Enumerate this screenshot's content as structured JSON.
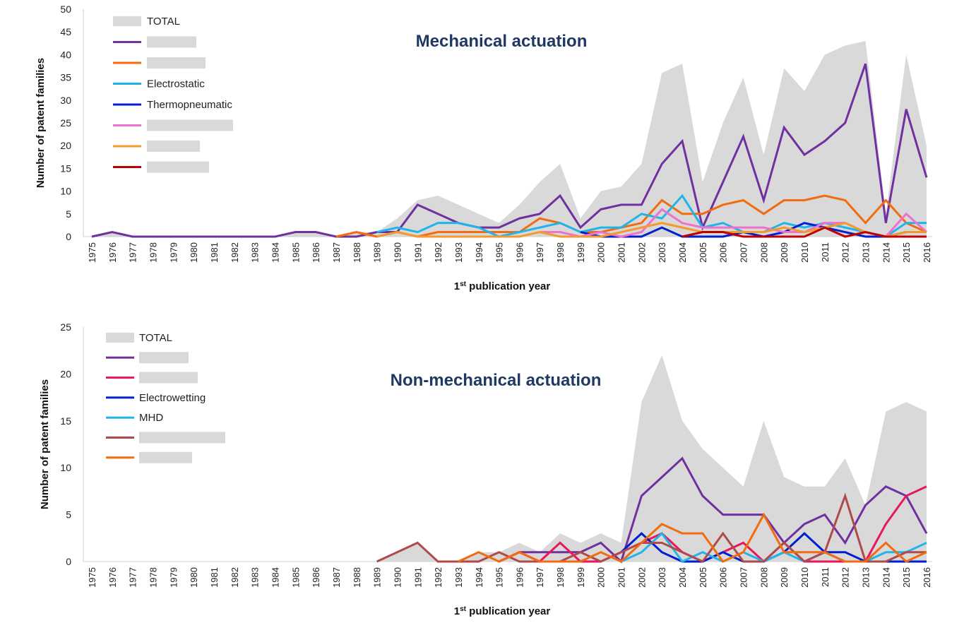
{
  "chart_data": [
    {
      "type": "line",
      "title": "Mechanical actuation",
      "xlabel": "1st publication year",
      "xlabel_main": "1",
      "xlabel_sup": "st",
      "xlabel_rest": " publication year",
      "ylabel": "Number of patent families",
      "ylim": [
        0,
        50
      ],
      "yticks": [
        0,
        5,
        10,
        15,
        20,
        25,
        30,
        35,
        40,
        45,
        50
      ],
      "x": [
        "1975",
        "1976",
        "1977",
        "1978",
        "1979",
        "1980",
        "1981",
        "1982",
        "1983",
        "1984",
        "1985",
        "1986",
        "1987",
        "1988",
        "1989",
        "1990",
        "1991",
        "1992",
        "1993",
        "1994",
        "1995",
        "1996",
        "1997",
        "1998",
        "1999",
        "2000",
        "2001",
        "2002",
        "2003",
        "2004",
        "2005",
        "2006",
        "2007",
        "2008",
        "2009",
        "2010",
        "2011",
        "2012",
        "2013",
        "2014",
        "2015",
        "2016"
      ],
      "legend_position": "top-left",
      "grid": false,
      "total": {
        "name": "TOTAL",
        "color": "#d9d9d9",
        "values": [
          0,
          1,
          0,
          0,
          0,
          0,
          0,
          0,
          0,
          0,
          1,
          1,
          0,
          1,
          1,
          4,
          8,
          9,
          7,
          5,
          3,
          7,
          12,
          16,
          4,
          10,
          11,
          16,
          36,
          38,
          12,
          25,
          35,
          18,
          37,
          32,
          40,
          42,
          43,
          5,
          40,
          20
        ]
      },
      "series": [
        {
          "name": "",
          "color": "#7030a0",
          "values": [
            0,
            1,
            0,
            0,
            0,
            0,
            0,
            0,
            0,
            0,
            1,
            1,
            0,
            0,
            1,
            1,
            7,
            5,
            3,
            2,
            2,
            4,
            5,
            9,
            2,
            6,
            7,
            7,
            16,
            21,
            2,
            12,
            22,
            8,
            24,
            18,
            21,
            25,
            38,
            3,
            28,
            13
          ]
        },
        {
          "name": "",
          "color": "#f26b0f",
          "values": [
            null,
            null,
            null,
            null,
            null,
            null,
            null,
            null,
            null,
            null,
            null,
            null,
            0,
            1,
            0,
            1,
            0,
            1,
            1,
            1,
            1,
            1,
            4,
            3,
            1,
            1,
            2,
            3,
            8,
            5,
            5,
            7,
            8,
            5,
            8,
            8,
            9,
            8,
            3,
            8,
            3,
            1
          ]
        },
        {
          "name": "Electrostatic",
          "color": "#1fb5e8",
          "values": [
            null,
            null,
            null,
            null,
            null,
            null,
            null,
            null,
            null,
            null,
            null,
            null,
            null,
            null,
            1,
            2,
            1,
            3,
            3,
            2,
            0,
            1,
            2,
            3,
            1,
            2,
            2,
            5,
            4,
            9,
            2,
            3,
            1,
            1,
            3,
            2,
            3,
            2,
            1,
            0,
            3,
            3
          ]
        },
        {
          "name": "Thermopneumatic",
          "color": "#0020d0",
          "values": [
            null,
            null,
            null,
            null,
            null,
            null,
            null,
            null,
            null,
            null,
            null,
            null,
            null,
            null,
            null,
            null,
            null,
            null,
            null,
            null,
            null,
            null,
            null,
            null,
            1,
            0,
            0,
            0,
            2,
            0,
            0,
            0,
            1,
            0,
            1,
            3,
            2,
            1,
            0,
            0,
            1,
            1
          ]
        },
        {
          "name": "",
          "color": "#f070d0",
          "values": [
            null,
            null,
            null,
            null,
            null,
            null,
            null,
            null,
            null,
            null,
            null,
            null,
            null,
            null,
            null,
            null,
            null,
            null,
            null,
            null,
            null,
            null,
            1,
            1,
            0,
            1,
            0,
            1,
            6,
            3,
            2,
            2,
            2,
            2,
            1,
            1,
            3,
            3,
            1,
            0,
            5,
            1
          ]
        },
        {
          "name": "",
          "color": "#f39a2c",
          "values": [
            null,
            null,
            null,
            null,
            null,
            null,
            null,
            null,
            null,
            null,
            null,
            null,
            null,
            null,
            0,
            1,
            0,
            0,
            0,
            0,
            0,
            0,
            1,
            0,
            0,
            0,
            1,
            2,
            3,
            2,
            1,
            1,
            1,
            1,
            2,
            1,
            2,
            3,
            1,
            0,
            1,
            1
          ]
        },
        {
          "name": "",
          "color": "#c00000",
          "values": [
            null,
            null,
            null,
            null,
            null,
            null,
            null,
            null,
            null,
            null,
            null,
            null,
            null,
            null,
            null,
            null,
            null,
            null,
            null,
            null,
            null,
            null,
            null,
            null,
            null,
            null,
            null,
            null,
            null,
            0,
            1,
            1,
            0,
            0,
            0,
            0,
            2,
            0,
            1,
            0,
            0,
            0
          ]
        }
      ]
    },
    {
      "type": "line",
      "title": "Non-mechanical actuation",
      "xlabel": "1st publication year",
      "xlabel_main": "1",
      "xlabel_sup": "st",
      "xlabel_rest": " publication year",
      "ylabel": "Number of patent families",
      "ylim": [
        0,
        25
      ],
      "yticks": [
        0,
        5,
        10,
        15,
        20,
        25
      ],
      "x": [
        "1975",
        "1976",
        "1977",
        "1978",
        "1979",
        "1980",
        "1981",
        "1982",
        "1983",
        "1984",
        "1985",
        "1986",
        "1987",
        "1988",
        "1989",
        "1990",
        "1991",
        "1992",
        "1993",
        "1994",
        "1995",
        "1996",
        "1997",
        "1998",
        "1999",
        "2000",
        "2001",
        "2002",
        "2003",
        "2004",
        "2005",
        "2006",
        "2007",
        "2008",
        "2009",
        "2010",
        "2011",
        "2012",
        "2013",
        "2014",
        "2015",
        "2016"
      ],
      "legend_position": "top-left",
      "grid": false,
      "total": {
        "name": "TOTAL",
        "color": "#d9d9d9",
        "values": [
          0,
          0,
          0,
          0,
          0,
          0,
          0,
          0,
          0,
          0,
          0,
          0,
          0,
          0,
          0,
          1,
          2,
          0,
          0,
          1,
          1,
          2,
          1,
          3,
          2,
          3,
          2,
          17,
          22,
          15,
          12,
          10,
          8,
          15,
          9,
          8,
          8,
          11,
          6,
          16,
          17,
          16
        ]
      },
      "series": [
        {
          "name": "",
          "color": "#7030a0",
          "values": [
            null,
            null,
            null,
            null,
            null,
            null,
            null,
            null,
            null,
            null,
            null,
            null,
            null,
            null,
            null,
            null,
            null,
            null,
            null,
            null,
            0,
            1,
            1,
            1,
            1,
            2,
            0,
            7,
            9,
            11,
            7,
            5,
            5,
            5,
            2,
            4,
            5,
            2,
            6,
            8,
            7,
            3
          ]
        },
        {
          "name": "",
          "color": "#e8175d",
          "values": [
            null,
            null,
            null,
            null,
            null,
            null,
            null,
            null,
            null,
            null,
            null,
            null,
            null,
            null,
            null,
            null,
            null,
            null,
            null,
            null,
            0,
            1,
            0,
            2,
            0,
            0,
            1,
            2,
            3,
            1,
            0,
            1,
            2,
            0,
            2,
            0,
            0,
            0,
            0,
            4,
            7,
            8
          ]
        },
        {
          "name": "Electrowetting",
          "color": "#0020d0",
          "values": [
            null,
            null,
            null,
            null,
            null,
            null,
            null,
            null,
            null,
            null,
            null,
            null,
            null,
            null,
            null,
            null,
            null,
            null,
            null,
            null,
            null,
            null,
            null,
            null,
            null,
            null,
            1,
            3,
            1,
            0,
            0,
            1,
            0,
            0,
            1,
            3,
            1,
            1,
            0,
            0,
            0,
            0
          ]
        },
        {
          "name": "MHD",
          "color": "#1fb5e8",
          "values": [
            null,
            null,
            null,
            null,
            null,
            null,
            null,
            null,
            null,
            null,
            null,
            null,
            null,
            null,
            null,
            null,
            null,
            null,
            null,
            null,
            null,
            null,
            null,
            null,
            null,
            null,
            0,
            1,
            3,
            0,
            1,
            0,
            1,
            0,
            1,
            0,
            1,
            0,
            0,
            1,
            1,
            2
          ]
        },
        {
          "name": "",
          "color": "#b04a4a",
          "values": [
            null,
            null,
            null,
            null,
            null,
            null,
            null,
            null,
            null,
            null,
            null,
            null,
            null,
            null,
            0,
            1,
            2,
            0,
            0,
            0,
            1,
            0,
            0,
            0,
            1,
            0,
            1,
            2,
            2,
            1,
            0,
            3,
            0,
            0,
            2,
            0,
            1,
            7,
            0,
            0,
            1,
            1
          ]
        },
        {
          "name": "",
          "color": "#f26b0f",
          "values": [
            null,
            null,
            null,
            null,
            null,
            null,
            null,
            null,
            null,
            null,
            null,
            null,
            null,
            null,
            null,
            null,
            null,
            null,
            0,
            1,
            0,
            1,
            0,
            0,
            0,
            1,
            0,
            2,
            4,
            3,
            3,
            0,
            1,
            5,
            1,
            1,
            1,
            0,
            0,
            2,
            0,
            1
          ]
        }
      ]
    }
  ]
}
